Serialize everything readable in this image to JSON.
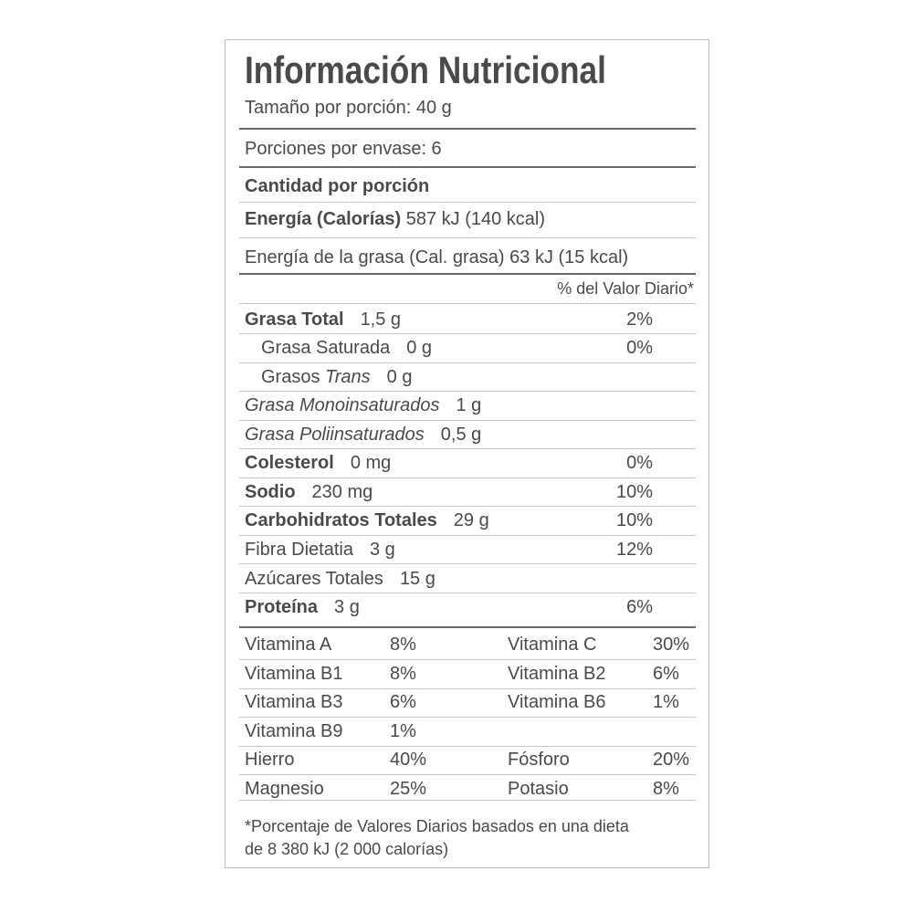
{
  "header": {
    "title": "Información Nutricional",
    "serving_size": "Tamaño por porción: 40 g",
    "servings_per_container": "Porciones por envase: 6"
  },
  "amount_per_serving": "Cantidad por porción",
  "energy": {
    "label": "Energía (Calorías)",
    "value": "587 kJ (140 kcal)"
  },
  "energy_from_fat": "Energía de la grasa (Cal. grasa) 63 kJ (15 kcal)",
  "daily_value_header": "% del Valor Diario*",
  "nutrients": [
    {
      "label": "Grasa Total",
      "amount": "1,5 g",
      "dv": "2%"
    },
    {
      "label": "Grasa Saturada",
      "amount": "0 g",
      "dv": "0%"
    },
    {
      "label": [
        "Grasos",
        "Trans"
      ],
      "amount": "0 g"
    },
    {
      "label": "Grasa Monoinsaturados",
      "amount": "1 g"
    },
    {
      "label": "Grasa Poliinsaturados",
      "amount": "0,5 g"
    },
    {
      "label": "Colesterol",
      "amount": "0 mg",
      "dv": "0%"
    },
    {
      "label": "Sodio",
      "amount": "230 mg",
      "dv": "10%"
    },
    {
      "label": "Carbohidratos Totales",
      "amount": "29 g",
      "dv": "10%"
    },
    {
      "label": "Fibra Dietatia",
      "amount": "3 g",
      "dv": "12%"
    },
    {
      "label": "Azúcares Totales",
      "amount": "15 g"
    },
    {
      "label": "Proteína",
      "amount": "3 g",
      "dv": "6%"
    }
  ],
  "vitamins_minerals": [
    [
      {
        "name": "Vitamina A",
        "value": "8%"
      },
      {
        "name": "Vitamina C",
        "value": "30%"
      }
    ],
    [
      {
        "name": "Vitamina B1",
        "value": "8%"
      },
      {
        "name": "Vitamina B2",
        "value": "6%"
      }
    ],
    [
      {
        "name": "Vitamina B3",
        "value": "6%"
      },
      {
        "name": "Vitamina B6",
        "value": "1%"
      }
    ],
    [
      {
        "name": "Vitamina B9",
        "value": "1%"
      }
    ],
    [
      {
        "name": "Hierro",
        "value": "40%"
      },
      {
        "name": "Fósforo",
        "value": "20%"
      }
    ],
    [
      {
        "name": "Magnesio",
        "value": "25%"
      },
      {
        "name": "Potasio",
        "value": "8%"
      }
    ]
  ],
  "footnote": [
    "*Porcentaje de Valores Diarios basados en una dieta",
    "de 8 380 kJ (2 000 calorías)"
  ]
}
